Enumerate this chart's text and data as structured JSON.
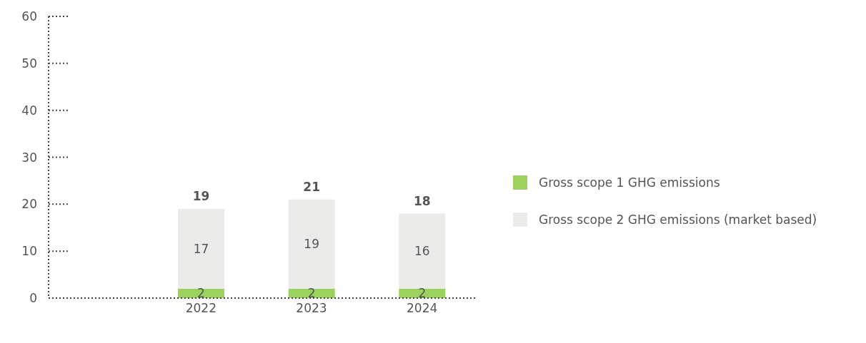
{
  "chart_data": {
    "type": "bar",
    "stacked": true,
    "categories": [
      "2022",
      "2023",
      "2024"
    ],
    "series": [
      {
        "name": "Gross scope 1 GHG emissions",
        "color": "#9bd25e",
        "values": [
          2,
          2,
          2
        ]
      },
      {
        "name": "Gross scope 2 GHG emissions (market based)",
        "color": "#ebebea",
        "values": [
          17,
          19,
          16
        ]
      }
    ],
    "ylim": [
      0,
      60
    ],
    "yticks": [
      0,
      10,
      20,
      30,
      40,
      50,
      60
    ],
    "data_labels": true,
    "totals": [
      "19",
      "21",
      "18"
    ],
    "legend": "right"
  }
}
